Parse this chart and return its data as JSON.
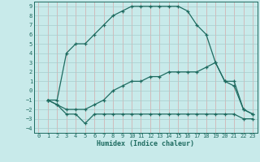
{
  "xlabel": "Humidex (Indice chaleur)",
  "bg_color": "#c8eaea",
  "line_color": "#1e6b60",
  "grid_v_color": "#d4a8a8",
  "grid_h_color": "#a8cccc",
  "xlim": [
    -0.5,
    23.5
  ],
  "ylim": [
    -4.5,
    9.5
  ],
  "xticks": [
    0,
    1,
    2,
    3,
    4,
    5,
    6,
    7,
    8,
    9,
    10,
    11,
    12,
    13,
    14,
    15,
    16,
    17,
    18,
    19,
    20,
    21,
    22,
    23
  ],
  "yticks": [
    -4,
    -3,
    -2,
    -1,
    0,
    1,
    2,
    3,
    4,
    5,
    6,
    7,
    8,
    9
  ],
  "curve1_x": [
    1,
    2,
    3,
    4,
    5,
    6,
    7,
    8,
    9,
    10,
    11,
    12,
    13,
    14,
    15,
    16,
    17,
    18,
    19,
    20,
    21,
    22,
    23
  ],
  "curve1_y": [
    -1,
    -1,
    4,
    5,
    5,
    6,
    7,
    8,
    8.5,
    9,
    9,
    9,
    9,
    9,
    9,
    8.5,
    7,
    6,
    3,
    1,
    0.5,
    -2,
    -2.5
  ],
  "curve2_x": [
    1,
    2,
    3,
    4,
    5,
    6,
    7,
    8,
    9,
    10,
    11,
    12,
    13,
    14,
    15,
    16,
    17,
    18,
    19,
    20,
    21,
    22,
    23
  ],
  "curve2_y": [
    -1,
    -1.5,
    -2,
    -2,
    -2,
    -1.5,
    -1,
    0,
    0.5,
    1,
    1,
    1.5,
    1.5,
    2,
    2,
    2,
    2,
    2.5,
    3,
    1,
    1,
    -2,
    -2.5
  ],
  "curve3_x": [
    1,
    2,
    3,
    4,
    5,
    6,
    7,
    8,
    9,
    10,
    11,
    12,
    13,
    14,
    15,
    16,
    17,
    18,
    19,
    20,
    21,
    22,
    23
  ],
  "curve3_y": [
    -1,
    -1.5,
    -2.5,
    -2.5,
    -3.5,
    -2.5,
    -2.5,
    -2.5,
    -2.5,
    -2.5,
    -2.5,
    -2.5,
    -2.5,
    -2.5,
    -2.5,
    -2.5,
    -2.5,
    -2.5,
    -2.5,
    -2.5,
    -2.5,
    -3,
    -3
  ]
}
